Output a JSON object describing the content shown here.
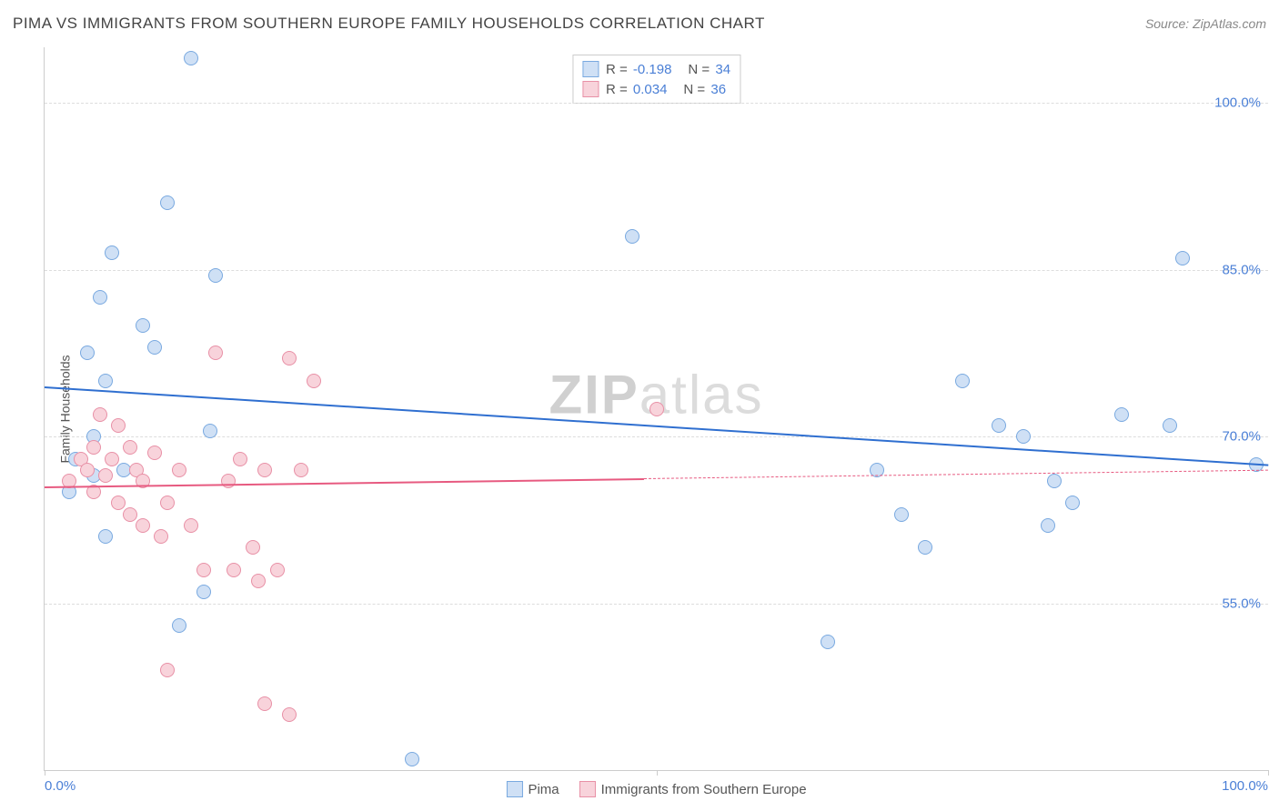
{
  "header": {
    "title": "PIMA VS IMMIGRANTS FROM SOUTHERN EUROPE FAMILY HOUSEHOLDS CORRELATION CHART",
    "source_prefix": "Source: ",
    "source_name": "ZipAtlas.com"
  },
  "watermark": {
    "part1": "ZIP",
    "part2": "atlas"
  },
  "chart": {
    "type": "scatter",
    "ylabel": "Family Households",
    "xlim": [
      0,
      100
    ],
    "ylim": [
      40,
      105
    ],
    "yticks": [
      {
        "value": 55,
        "label": "55.0%"
      },
      {
        "value": 70,
        "label": "70.0%"
      },
      {
        "value": 85,
        "label": "85.0%"
      },
      {
        "value": 100,
        "label": "100.0%"
      }
    ],
    "xticks_bottom": [
      0,
      50,
      100
    ],
    "xtick_labels": [
      {
        "value": 0,
        "label": "0.0%"
      },
      {
        "value": 100,
        "label": "100.0%"
      }
    ],
    "series": [
      {
        "name": "Pima",
        "marker_fill": "#cfe0f5",
        "marker_stroke": "#79a9e0",
        "line_color": "#2f6fd0",
        "marker_radius": 8,
        "R": "-0.198",
        "N": "34",
        "regression": {
          "x1": 0,
          "y1": 74.5,
          "x2": 100,
          "y2": 67.5,
          "dash_from_x": null
        },
        "points": [
          [
            3.5,
            77.5
          ],
          [
            5,
            75
          ],
          [
            2,
            65
          ],
          [
            4,
            66.5
          ],
          [
            5.5,
            86.5
          ],
          [
            4.5,
            82.5
          ],
          [
            8,
            80
          ],
          [
            12,
            104
          ],
          [
            9,
            78
          ],
          [
            10,
            91
          ],
          [
            14,
            84.5
          ],
          [
            4,
            70
          ],
          [
            5,
            61
          ],
          [
            11,
            53
          ],
          [
            13.5,
            70.5
          ],
          [
            30,
            41
          ],
          [
            48,
            88
          ],
          [
            64,
            51.5
          ],
          [
            68,
            67
          ],
          [
            70,
            63
          ],
          [
            72,
            60
          ],
          [
            75,
            75
          ],
          [
            78,
            71
          ],
          [
            80,
            70
          ],
          [
            84,
            64
          ],
          [
            82,
            62
          ],
          [
            82.5,
            66
          ],
          [
            88,
            72
          ],
          [
            92,
            71
          ],
          [
            93,
            86
          ],
          [
            99,
            67.5
          ],
          [
            6.5,
            67
          ],
          [
            2.5,
            68
          ],
          [
            13,
            56
          ]
        ]
      },
      {
        "name": "Immigrants from Southern Europe",
        "marker_fill": "#f8d3db",
        "marker_stroke": "#e890a6",
        "line_color": "#e75a80",
        "marker_radius": 8,
        "R": "0.034",
        "N": "36",
        "regression": {
          "x1": 0,
          "y1": 65.5,
          "x2": 100,
          "y2": 67.0,
          "dash_from_x": 49
        },
        "points": [
          [
            2,
            66
          ],
          [
            3,
            68
          ],
          [
            3.5,
            67
          ],
          [
            4,
            69
          ],
          [
            4,
            65
          ],
          [
            4.5,
            72
          ],
          [
            5,
            66.5
          ],
          [
            5.5,
            68
          ],
          [
            6,
            64
          ],
          [
            6,
            71
          ],
          [
            7,
            63
          ],
          [
            7,
            69
          ],
          [
            7.5,
            67
          ],
          [
            8,
            62
          ],
          [
            8,
            66
          ],
          [
            9,
            68.5
          ],
          [
            9.5,
            61
          ],
          [
            10,
            64
          ],
          [
            10,
            49
          ],
          [
            11,
            67
          ],
          [
            14,
            77.5
          ],
          [
            15,
            66
          ],
          [
            15.5,
            58
          ],
          [
            16,
            68
          ],
          [
            17,
            60
          ],
          [
            17.5,
            57
          ],
          [
            18,
            46
          ],
          [
            18,
            67
          ],
          [
            19,
            58
          ],
          [
            20,
            77
          ],
          [
            20,
            45
          ],
          [
            21,
            67
          ],
          [
            22,
            75
          ],
          [
            50,
            72.5
          ],
          [
            13,
            58
          ],
          [
            12,
            62
          ]
        ]
      }
    ],
    "plot_bg": "#ffffff",
    "grid_color": "#dddddd",
    "axis_color": "#cccccc",
    "tick_font_color": "#4a7fd6",
    "tick_fontsize": 15,
    "label_fontsize": 14,
    "title_fontsize": 17
  },
  "legend_bottom": {
    "items": [
      {
        "label": "Pima",
        "fill": "#cfe0f5",
        "stroke": "#79a9e0"
      },
      {
        "label": "Immigrants from Southern Europe",
        "fill": "#f8d3db",
        "stroke": "#e890a6"
      }
    ]
  }
}
